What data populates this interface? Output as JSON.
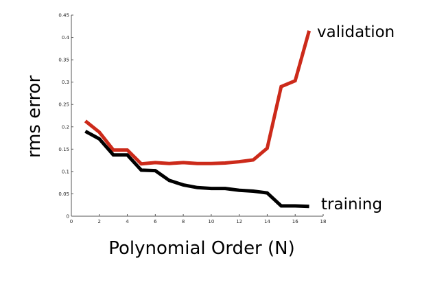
{
  "chart_data": {
    "type": "line",
    "title": "",
    "xlabel": "Polynomial Order (N)",
    "ylabel": "rms error",
    "xlim": [
      0,
      18
    ],
    "ylim": [
      0,
      0.45
    ],
    "xticks": [
      "0",
      "2",
      "4",
      "6",
      "8",
      "10",
      "12",
      "14",
      "16",
      "18"
    ],
    "yticks": [
      "0",
      "0.05",
      "0.1",
      "0.15",
      "0.2",
      "0.25",
      "0.3",
      "0.35",
      "0.4",
      "0.45"
    ],
    "grid": false,
    "legend": "none",
    "series": [
      {
        "name": "validation",
        "color": "#cc2a1a",
        "x": [
          1,
          2,
          3,
          4,
          5,
          6,
          7,
          8,
          9,
          10,
          11,
          12,
          13,
          14,
          15,
          16,
          17
        ],
        "values": [
          0.213,
          0.188,
          0.148,
          0.148,
          0.117,
          0.12,
          0.118,
          0.12,
          0.118,
          0.118,
          0.119,
          0.122,
          0.126,
          0.152,
          0.29,
          0.303,
          0.415
        ]
      },
      {
        "name": "training",
        "color": "#000000",
        "x": [
          1,
          2,
          3,
          4,
          5,
          6,
          7,
          8,
          9,
          10,
          11,
          12,
          13,
          14,
          15,
          16,
          17
        ],
        "values": [
          0.19,
          0.173,
          0.137,
          0.137,
          0.103,
          0.102,
          0.08,
          0.07,
          0.064,
          0.062,
          0.062,
          0.058,
          0.056,
          0.052,
          0.023,
          0.023,
          0.022
        ]
      }
    ]
  }
}
